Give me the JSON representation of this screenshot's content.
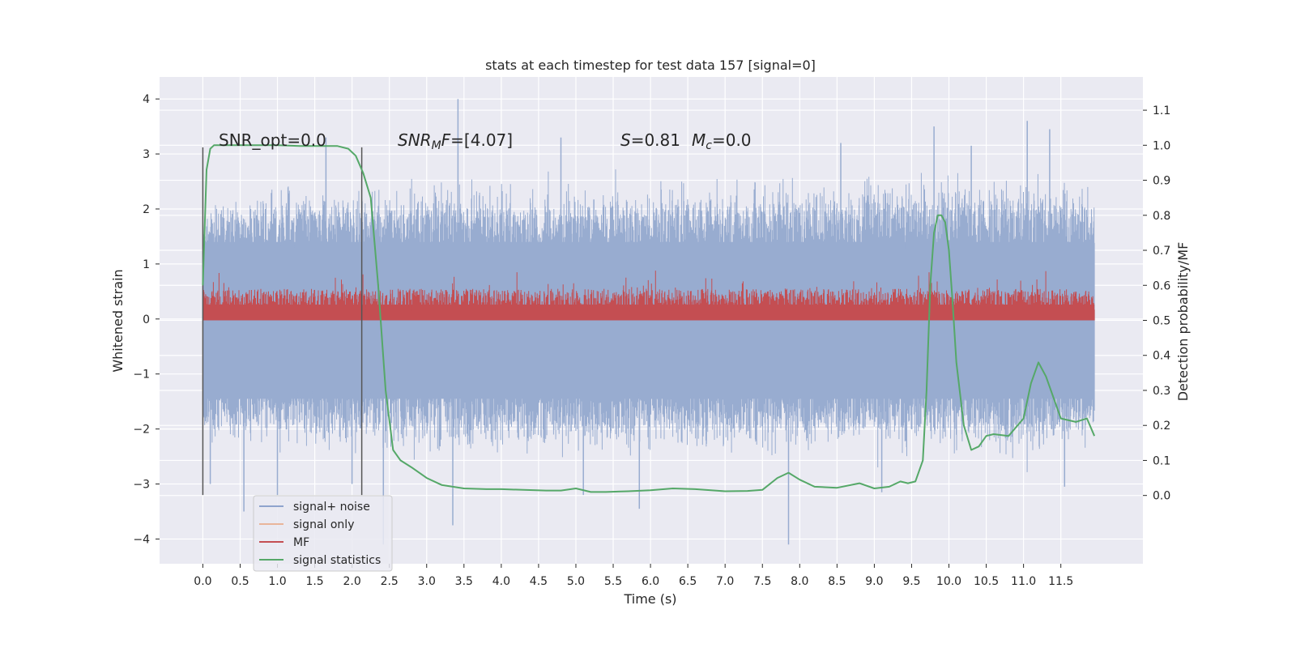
{
  "chart_data": {
    "type": "line",
    "title": "stats at each timestep for test data 157 [signal=0]",
    "xlabel": "Time (s)",
    "ylabel": "Whitened strain",
    "y2label": "Detection probability/MF",
    "xlim": [
      -0.58,
      12.6
    ],
    "ylim": [
      -4.45,
      4.4
    ],
    "y2lim": [
      -0.195,
      1.195
    ],
    "x_ticks": [
      "0.0",
      "0.5",
      "1.0",
      "1.5",
      "2.0",
      "2.5",
      "3.0",
      "3.5",
      "4.0",
      "4.5",
      "5.0",
      "5.5",
      "6.0",
      "6.5",
      "7.0",
      "7.5",
      "8.0",
      "8.5",
      "9.0",
      "9.5",
      "10.0",
      "10.5",
      "11.0",
      "11.5"
    ],
    "y_ticks": [
      "4",
      "3",
      "2",
      "1",
      "0",
      "−1",
      "−2",
      "−3",
      "−4"
    ],
    "y2_ticks": [
      "1.1",
      "1.0",
      "0.9",
      "0.8",
      "0.7",
      "0.6",
      "0.5",
      "0.4",
      "0.3",
      "0.2",
      "0.1",
      "0.0"
    ],
    "grid": true,
    "legend_position": "lower-left",
    "annotations": {
      "snr_opt": "SNR_opt=0.0",
      "snr_mf_sym": "SNR",
      "snr_mf_sub": "M",
      "snr_mf_sym2": "F",
      "snr_mf_val": "=[4.07]",
      "s_sym": "S",
      "s_val": "=0.81",
      "mc_sym": "M",
      "mc_sub": "c",
      "mc_val": "=0.0"
    },
    "vlines_x": [
      0.0,
      2.13
    ],
    "vline_range": [
      -3.2,
      3.12
    ],
    "series": [
      {
        "name": "signal+ noise",
        "color": "#4c72b0",
        "description": "whitened strain noise band",
        "x_range": [
          0.0,
          11.95
        ],
        "envelope": {
          "x": [
            0,
            0.5,
            1,
            1.5,
            2,
            2.5,
            3,
            3.5,
            4,
            4.5,
            5,
            5.5,
            6,
            6.5,
            7,
            7.5,
            8,
            8.5,
            9,
            9.5,
            10,
            10.5,
            11,
            11.5,
            11.95
          ],
          "upper": [
            2.2,
            2.4,
            2.6,
            2.5,
            2.5,
            2.6,
            2.6,
            2.7,
            2.5,
            2.5,
            2.5,
            2.6,
            2.6,
            2.6,
            2.6,
            2.6,
            2.7,
            2.6,
            2.7,
            2.7,
            2.7,
            2.7,
            2.8,
            2.7,
            2.4
          ],
          "lower": [
            -2.3,
            -2.4,
            -2.4,
            -2.5,
            -2.4,
            -2.5,
            -2.5,
            -2.6,
            -2.5,
            -2.5,
            -2.5,
            -2.6,
            -2.5,
            -2.5,
            -2.6,
            -2.5,
            -2.6,
            -2.5,
            -2.6,
            -2.6,
            -2.5,
            -2.5,
            -2.6,
            -2.6,
            -2.3
          ]
        }
      },
      {
        "name": "signal only",
        "color": "#dd8452",
        "values": []
      },
      {
        "name": "MF",
        "color": "#c44e52",
        "axis": "right",
        "description": "matched filter output",
        "x_range": [
          0.0,
          11.95
        ],
        "base": 0.5,
        "upper_typ": 0.6
      },
      {
        "name": "signal statistics",
        "color": "#55a868",
        "axis": "right",
        "x": [
          0.0,
          0.05,
          0.1,
          0.15,
          0.2,
          0.3,
          0.5,
          0.8,
          1.0,
          1.3,
          1.6,
          1.8,
          1.95,
          2.05,
          2.15,
          2.25,
          2.35,
          2.45,
          2.55,
          2.65,
          2.8,
          3.0,
          3.2,
          3.5,
          3.8,
          4.0,
          4.3,
          4.6,
          4.8,
          5.0,
          5.2,
          5.4,
          5.7,
          6.0,
          6.3,
          6.6,
          7.0,
          7.3,
          7.5,
          7.7,
          7.85,
          8.0,
          8.2,
          8.5,
          8.8,
          9.0,
          9.2,
          9.35,
          9.45,
          9.55,
          9.65,
          9.7,
          9.75,
          9.8,
          9.85,
          9.9,
          9.95,
          10.0,
          10.05,
          10.1,
          10.2,
          10.3,
          10.4,
          10.5,
          10.6,
          10.8,
          11.0,
          11.1,
          11.2,
          11.3,
          11.5,
          11.7,
          11.85,
          11.95
        ],
        "values": [
          0.6,
          0.93,
          0.99,
          1.0,
          1.0,
          1.0,
          1.0,
          1.0,
          1.0,
          0.998,
          0.998,
          0.998,
          0.99,
          0.97,
          0.92,
          0.85,
          0.6,
          0.3,
          0.13,
          0.1,
          0.08,
          0.05,
          0.03,
          0.02,
          0.018,
          0.018,
          0.016,
          0.014,
          0.014,
          0.02,
          0.01,
          0.01,
          0.012,
          0.015,
          0.02,
          0.018,
          0.012,
          0.013,
          0.016,
          0.05,
          0.065,
          0.045,
          0.025,
          0.022,
          0.035,
          0.02,
          0.025,
          0.04,
          0.035,
          0.04,
          0.1,
          0.3,
          0.6,
          0.75,
          0.8,
          0.8,
          0.78,
          0.7,
          0.55,
          0.38,
          0.2,
          0.13,
          0.14,
          0.17,
          0.175,
          0.17,
          0.22,
          0.32,
          0.38,
          0.34,
          0.22,
          0.21,
          0.22,
          0.17
        ]
      }
    ],
    "outliers": [
      {
        "x": 0.1,
        "y": -3.0
      },
      {
        "x": 0.55,
        "y": -3.5
      },
      {
        "x": 1.0,
        "y": -3.2
      },
      {
        "x": 1.65,
        "y": 3.3
      },
      {
        "x": 2.0,
        "y": -3.0
      },
      {
        "x": 2.42,
        "y": -4.1
      },
      {
        "x": 3.35,
        "y": -3.75
      },
      {
        "x": 3.42,
        "y": 4.0
      },
      {
        "x": 4.8,
        "y": 3.3
      },
      {
        "x": 5.1,
        "y": -3.2
      },
      {
        "x": 5.85,
        "y": -3.45
      },
      {
        "x": 7.85,
        "y": -4.1
      },
      {
        "x": 8.55,
        "y": 3.2
      },
      {
        "x": 9.1,
        "y": -3.15
      },
      {
        "x": 9.8,
        "y": 3.5
      },
      {
        "x": 10.3,
        "y": 3.15
      },
      {
        "x": 11.05,
        "y": 3.6
      },
      {
        "x": 11.35,
        "y": 3.45
      },
      {
        "x": 11.55,
        "y": -3.05
      }
    ]
  }
}
